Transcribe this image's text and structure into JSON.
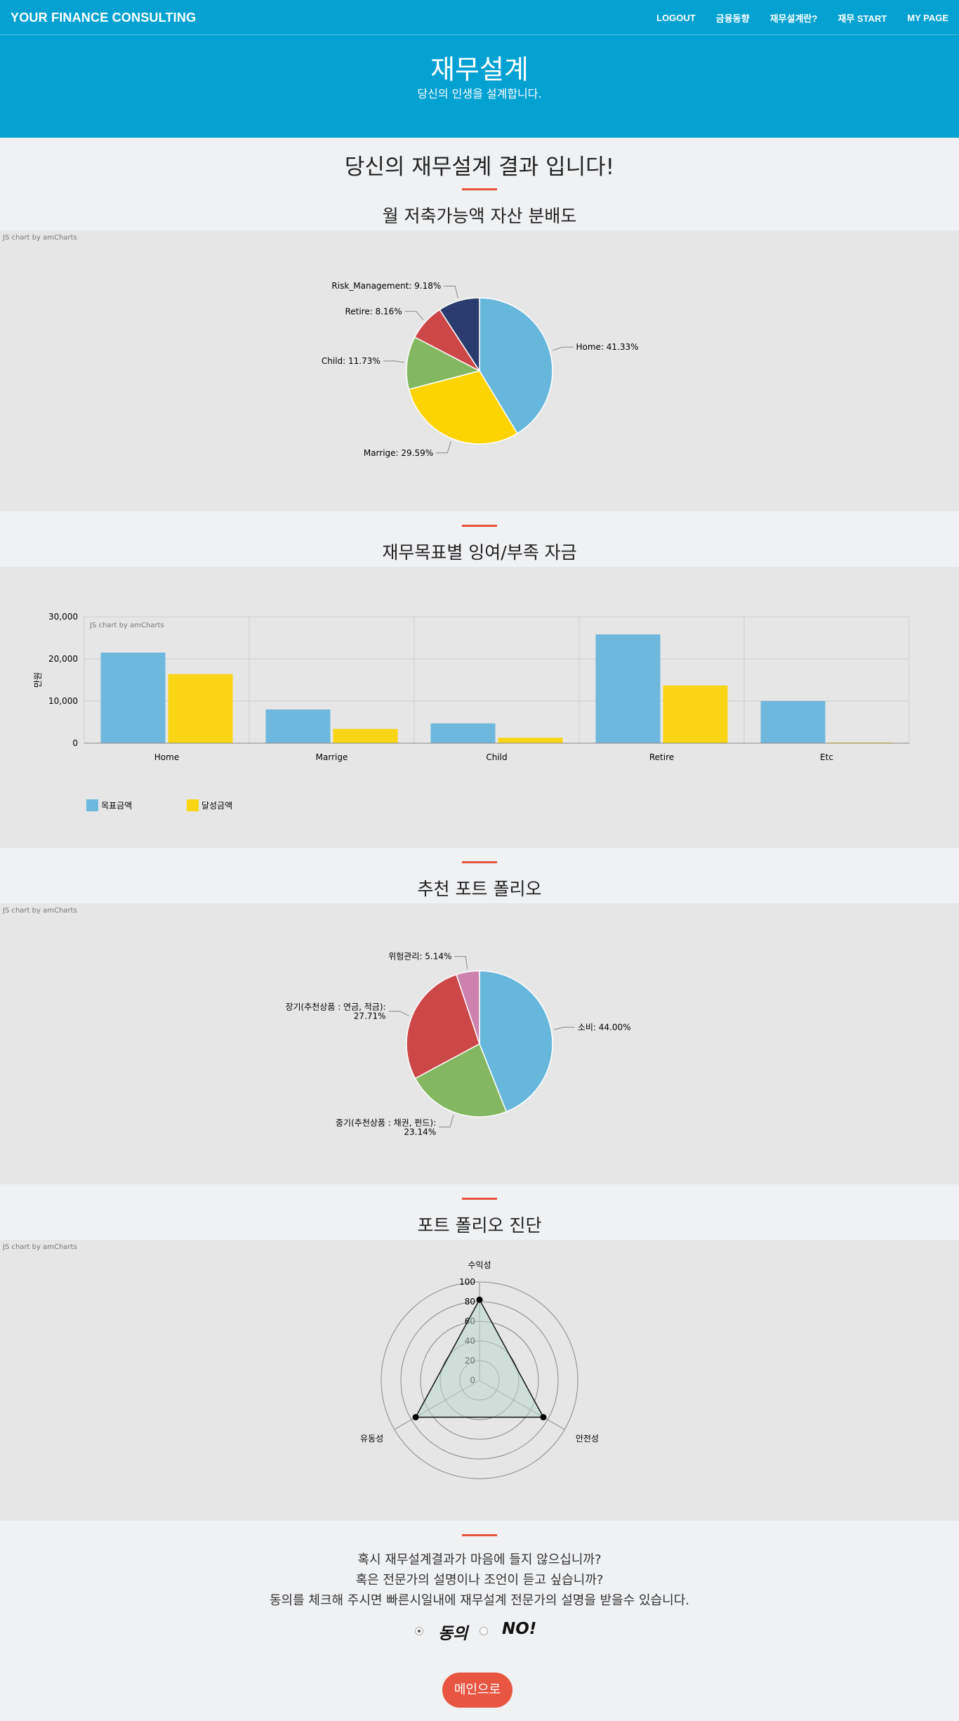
{
  "nav": {
    "brand": "YOUR FINANCE CONSULTING",
    "links": [
      "LOGOUT",
      "금융동향",
      "재무설계란?",
      "재무 START",
      "MY PAGE"
    ]
  },
  "hero": {
    "title": "재무설계",
    "subtitle": "당신의 인생을 설계합니다."
  },
  "result_title": "당신의 재무설계 결과 입니다!",
  "sections": {
    "allocation": "월 저축가능액 자산 분배도",
    "surplus": "재무목표별 잉여/부족 자금",
    "portfolio": "추천 포트 폴리오",
    "diagnosis": "포트 폴리오 진단"
  },
  "credit": "JS chart by amCharts",
  "colors": {
    "brand": "#03a2d3",
    "accent": "#e5533b",
    "panel": "#e6e6e6"
  },
  "chart_data": [
    {
      "type": "pie",
      "title": "월 저축가능액 자산 분배도",
      "slices": [
        {
          "label": "Home",
          "value": 41.33,
          "display": "Home: 41.33%",
          "color": "#67b7dc"
        },
        {
          "label": "Marrige",
          "value": 29.59,
          "display": "Marrige: 29.59%",
          "color": "#fdd400"
        },
        {
          "label": "Child",
          "value": 11.73,
          "display": "Child: 11.73%",
          "color": "#84b761"
        },
        {
          "label": "Retire",
          "value": 8.16,
          "display": "Retire: 8.16%",
          "color": "#cc4748"
        },
        {
          "label": "Risk_Management",
          "value": 9.18,
          "display": "Risk_Management: 9.18%",
          "color": "#2a3c6e"
        }
      ]
    },
    {
      "type": "bar",
      "title": "재무목표별 잉여/부족 자금",
      "categories": [
        "Home",
        "Marrige",
        "Child",
        "Retire",
        "Etc"
      ],
      "series": [
        {
          "name": "목표금액",
          "values": [
            21500,
            8000,
            4700,
            25800,
            10000
          ],
          "color": "#6db8dc"
        },
        {
          "name": "달성금액",
          "values": [
            16400,
            3400,
            1300,
            13700,
            0
          ],
          "color": "#f9d516"
        }
      ],
      "ylabel": "만원",
      "ylim": [
        0,
        30000
      ],
      "yticks": [
        "0",
        "10,000",
        "20,000",
        "30,000"
      ],
      "grid": true,
      "legend": "bottom-left"
    },
    {
      "type": "pie",
      "title": "추천 포트 폴리오",
      "slices": [
        {
          "label": "소비",
          "value": 44.0,
          "display": [
            "소비: 44.00%"
          ],
          "color": "#67b7dc"
        },
        {
          "label": "중기(추천상품 : 채권, 펀드)",
          "value": 23.14,
          "display": [
            "중기(추천상품 : 채권, 펀드):",
            "23.14%"
          ],
          "color": "#84b761"
        },
        {
          "label": "장기(추천상품 : 연금, 적금)",
          "value": 27.71,
          "display": [
            "장기(추천상품 : 연금, 적금):",
            "27.71%"
          ],
          "color": "#cc4748"
        },
        {
          "label": "위험관리",
          "value": 5.14,
          "display": [
            "위험관리: 5.14%"
          ],
          "color": "#cd82ad"
        }
      ]
    },
    {
      "type": "radar",
      "title": "포트 폴리오 진단",
      "axes": [
        "수익성",
        "안전성",
        "유동성"
      ],
      "values": [
        82,
        75,
        75
      ],
      "scale": [
        0,
        100
      ],
      "ticks": [
        "0",
        "20",
        "40",
        "60",
        "80",
        "100"
      ]
    }
  ],
  "question": {
    "line1": "혹시 재무설계결과가 마음에 들지 않으십니까?",
    "line2": "혹은 전문가의 설명이나 조언이 듣고 싶습니까?",
    "line3": "동의를 체크해 주시면 빠른시일내에 재무설계 전문가의 설명을 받을수 있습니다."
  },
  "consent": {
    "agree": "동의",
    "disagree": "NO!",
    "selected": "agree"
  },
  "main_button": "메인으로"
}
